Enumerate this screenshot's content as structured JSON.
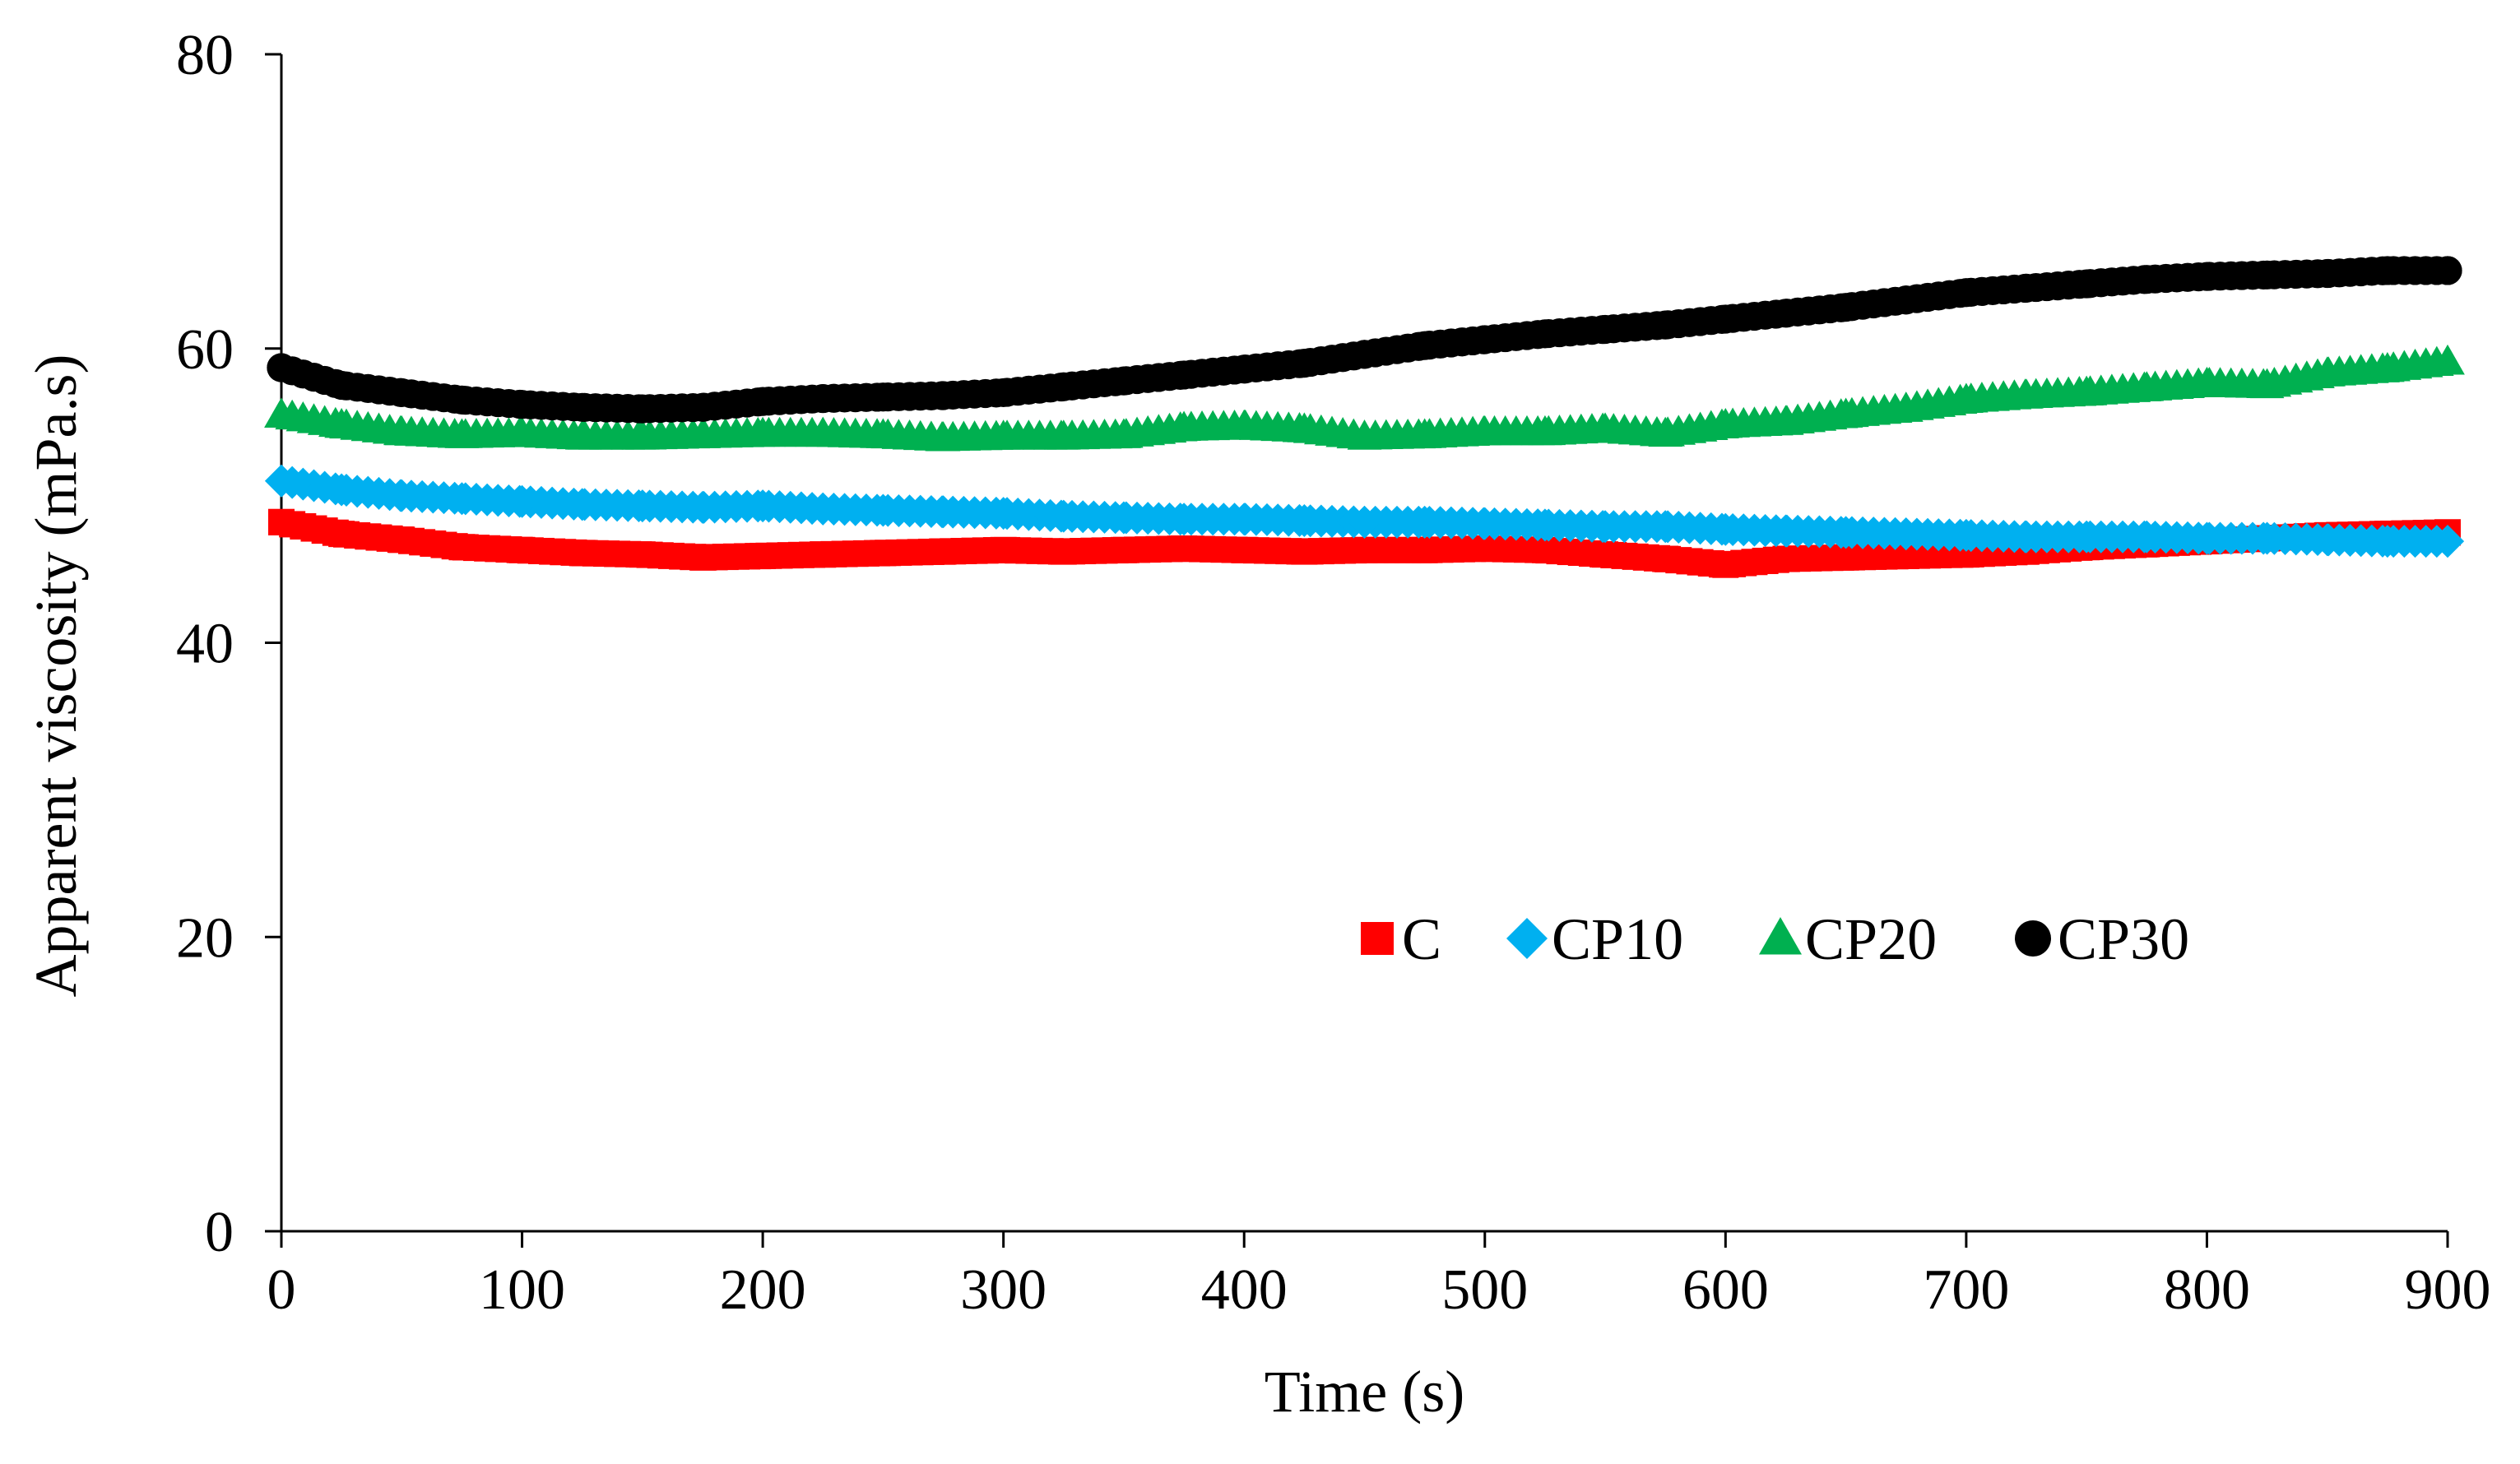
{
  "chart_data": {
    "type": "scatter",
    "title": "",
    "xlabel": "Time (s)",
    "ylabel": "Apparent viscosity  (mPa.s)",
    "xlim": [
      0,
      900
    ],
    "ylim": [
      0,
      80
    ],
    "xticks": [
      0,
      100,
      200,
      300,
      400,
      500,
      600,
      700,
      800,
      900
    ],
    "yticks": [
      0,
      20,
      40,
      60,
      80
    ],
    "grid": false,
    "legend_position": "bottom-right",
    "series": [
      {
        "name": "C",
        "marker": "square",
        "color": "#ff0000",
        "x": [
          0,
          25,
          50,
          75,
          100,
          125,
          150,
          175,
          200,
          225,
          250,
          275,
          300,
          325,
          350,
          375,
          400,
          425,
          450,
          475,
          500,
          525,
          550,
          575,
          600,
          625,
          650,
          675,
          700,
          725,
          750,
          775,
          800,
          825,
          850,
          875,
          900
        ],
        "y": [
          48.2,
          47.4,
          47.0,
          46.5,
          46.3,
          46.1,
          46.0,
          45.8,
          45.9,
          46.0,
          46.1,
          46.2,
          46.3,
          46.2,
          46.3,
          46.4,
          46.3,
          46.2,
          46.3,
          46.3,
          46.4,
          46.3,
          46.0,
          45.7,
          45.3,
          45.7,
          45.8,
          45.9,
          46.0,
          46.2,
          46.5,
          46.7,
          46.9,
          47.1,
          47.3,
          47.4,
          47.5
        ]
      },
      {
        "name": "CP10",
        "marker": "diamond",
        "color": "#00b0f0",
        "x": [
          0,
          25,
          50,
          75,
          100,
          125,
          150,
          175,
          200,
          225,
          250,
          275,
          300,
          325,
          350,
          375,
          400,
          425,
          450,
          475,
          500,
          525,
          550,
          575,
          600,
          625,
          650,
          675,
          700,
          725,
          750,
          775,
          800,
          825,
          850,
          875,
          900
        ],
        "y": [
          51.0,
          50.4,
          50.0,
          49.8,
          49.6,
          49.4,
          49.3,
          49.2,
          49.3,
          49.1,
          49.0,
          48.9,
          48.8,
          48.6,
          48.5,
          48.4,
          48.4,
          48.3,
          48.2,
          48.2,
          48.1,
          48.0,
          47.9,
          47.9,
          47.7,
          47.6,
          47.5,
          47.4,
          47.3,
          47.2,
          47.2,
          47.2,
          47.1,
          47.1,
          47.0,
          46.9,
          46.9
        ]
      },
      {
        "name": "CP20",
        "marker": "triangle",
        "color": "#00b050",
        "x": [
          0,
          25,
          50,
          75,
          100,
          125,
          150,
          175,
          200,
          225,
          250,
          275,
          300,
          325,
          350,
          375,
          400,
          425,
          450,
          475,
          500,
          525,
          550,
          575,
          600,
          625,
          650,
          675,
          700,
          725,
          750,
          775,
          800,
          825,
          850,
          875,
          900
        ],
        "y": [
          55.5,
          54.8,
          54.3,
          54.1,
          54.2,
          54.0,
          54.0,
          54.1,
          54.2,
          54.2,
          54.1,
          53.9,
          54.0,
          54.0,
          54.1,
          54.6,
          54.7,
          54.5,
          54.0,
          54.1,
          54.3,
          54.3,
          54.5,
          54.2,
          54.8,
          55.0,
          55.5,
          55.9,
          56.5,
          56.8,
          57.0,
          57.3,
          57.6,
          57.5,
          58.3,
          58.6,
          59.1
        ]
      },
      {
        "name": "CP30",
        "marker": "circle",
        "color": "#000000",
        "x": [
          0,
          25,
          50,
          75,
          100,
          125,
          150,
          175,
          200,
          225,
          250,
          275,
          300,
          325,
          350,
          375,
          400,
          425,
          450,
          475,
          500,
          525,
          550,
          575,
          600,
          625,
          650,
          675,
          700,
          725,
          750,
          775,
          800,
          825,
          850,
          875,
          900
        ],
        "y": [
          58.7,
          57.5,
          57.0,
          56.5,
          56.2,
          56.0,
          55.9,
          56.0,
          56.4,
          56.6,
          56.7,
          56.8,
          57.0,
          57.4,
          57.8,
          58.2,
          58.6,
          59.0,
          59.6,
          60.2,
          60.6,
          61.0,
          61.3,
          61.6,
          62.0,
          62.4,
          62.8,
          63.3,
          63.8,
          64.1,
          64.4,
          64.7,
          64.9,
          65.0,
          65.1,
          65.3,
          65.3
        ]
      }
    ]
  }
}
